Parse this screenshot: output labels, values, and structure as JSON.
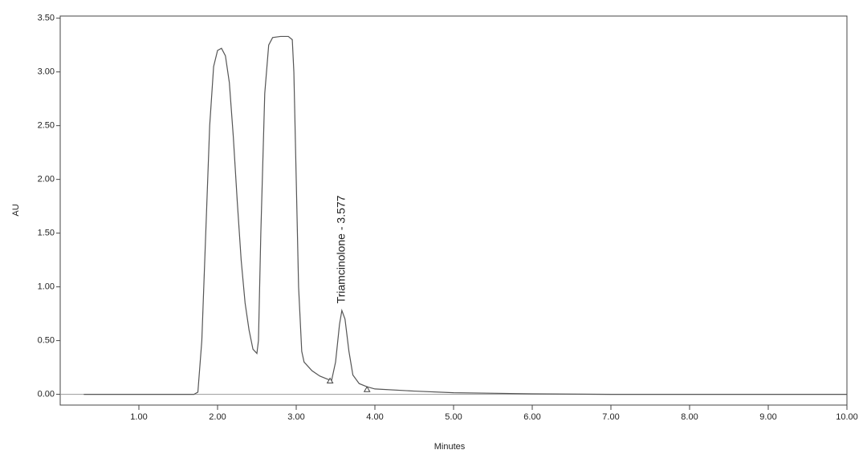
{
  "chart_data": {
    "type": "line",
    "x_label": "Minutes",
    "y_label": "AU",
    "annotation": {
      "text": "Triamcinolone - 3.577",
      "x": 3.58,
      "y": 0.8
    },
    "xlim": [
      0,
      10
    ],
    "ylim": [
      -0.1,
      3.52
    ],
    "xticks": [
      {
        "value": 1,
        "label": "1.00"
      },
      {
        "value": 2,
        "label": "2.00"
      },
      {
        "value": 3,
        "label": "3.00"
      },
      {
        "value": 4,
        "label": "4.00"
      },
      {
        "value": 5,
        "label": "5.00"
      },
      {
        "value": 6,
        "label": "6.00"
      },
      {
        "value": 7,
        "label": "7.00"
      },
      {
        "value": 8,
        "label": "8.00"
      },
      {
        "value": 9,
        "label": "9.00"
      },
      {
        "value": 10,
        "label": "10.00"
      }
    ],
    "yticks": [
      {
        "value": 0,
        "label": "0.00"
      },
      {
        "value": 0.5,
        "label": "0.50"
      },
      {
        "value": 1,
        "label": "1.00"
      },
      {
        "value": 1.5,
        "label": "1.50"
      },
      {
        "value": 2,
        "label": "2.00"
      },
      {
        "value": 2.5,
        "label": "2.50"
      },
      {
        "value": 3,
        "label": "3.00"
      },
      {
        "value": 3.5,
        "label": "3.50"
      }
    ],
    "zero_line": true,
    "series": [
      {
        "color": "#555555",
        "x": [
          0.3,
          1.7,
          1.75,
          1.8,
          1.85,
          1.9,
          1.95,
          2.0,
          2.05,
          2.1,
          2.15,
          2.2,
          2.25,
          2.3,
          2.35,
          2.4,
          2.45,
          2.5,
          2.52,
          2.55,
          2.6,
          2.65,
          2.7,
          2.8,
          2.9,
          2.95,
          2.97,
          3.0,
          3.03,
          3.07,
          3.1,
          3.2,
          3.3,
          3.4,
          3.45,
          3.5,
          3.55,
          3.58,
          3.62,
          3.67,
          3.72,
          3.8,
          3.9,
          4.0,
          4.5,
          5.0,
          6.0,
          7.0,
          10.0
        ],
        "values": [
          0,
          0,
          0.02,
          0.5,
          1.5,
          2.5,
          3.05,
          3.2,
          3.22,
          3.15,
          2.9,
          2.4,
          1.8,
          1.25,
          0.85,
          0.6,
          0.42,
          0.38,
          0.5,
          1.5,
          2.8,
          3.25,
          3.32,
          3.33,
          3.33,
          3.3,
          3.0,
          2.0,
          1.0,
          0.4,
          0.3,
          0.22,
          0.17,
          0.14,
          0.13,
          0.3,
          0.65,
          0.78,
          0.7,
          0.4,
          0.18,
          0.1,
          0.07,
          0.05,
          0.03,
          0.015,
          0.005,
          0,
          0
        ]
      }
    ],
    "baseline_markers": {
      "x": [
        3.43,
        3.9
      ],
      "y": [
        0.12,
        0.04
      ]
    }
  }
}
